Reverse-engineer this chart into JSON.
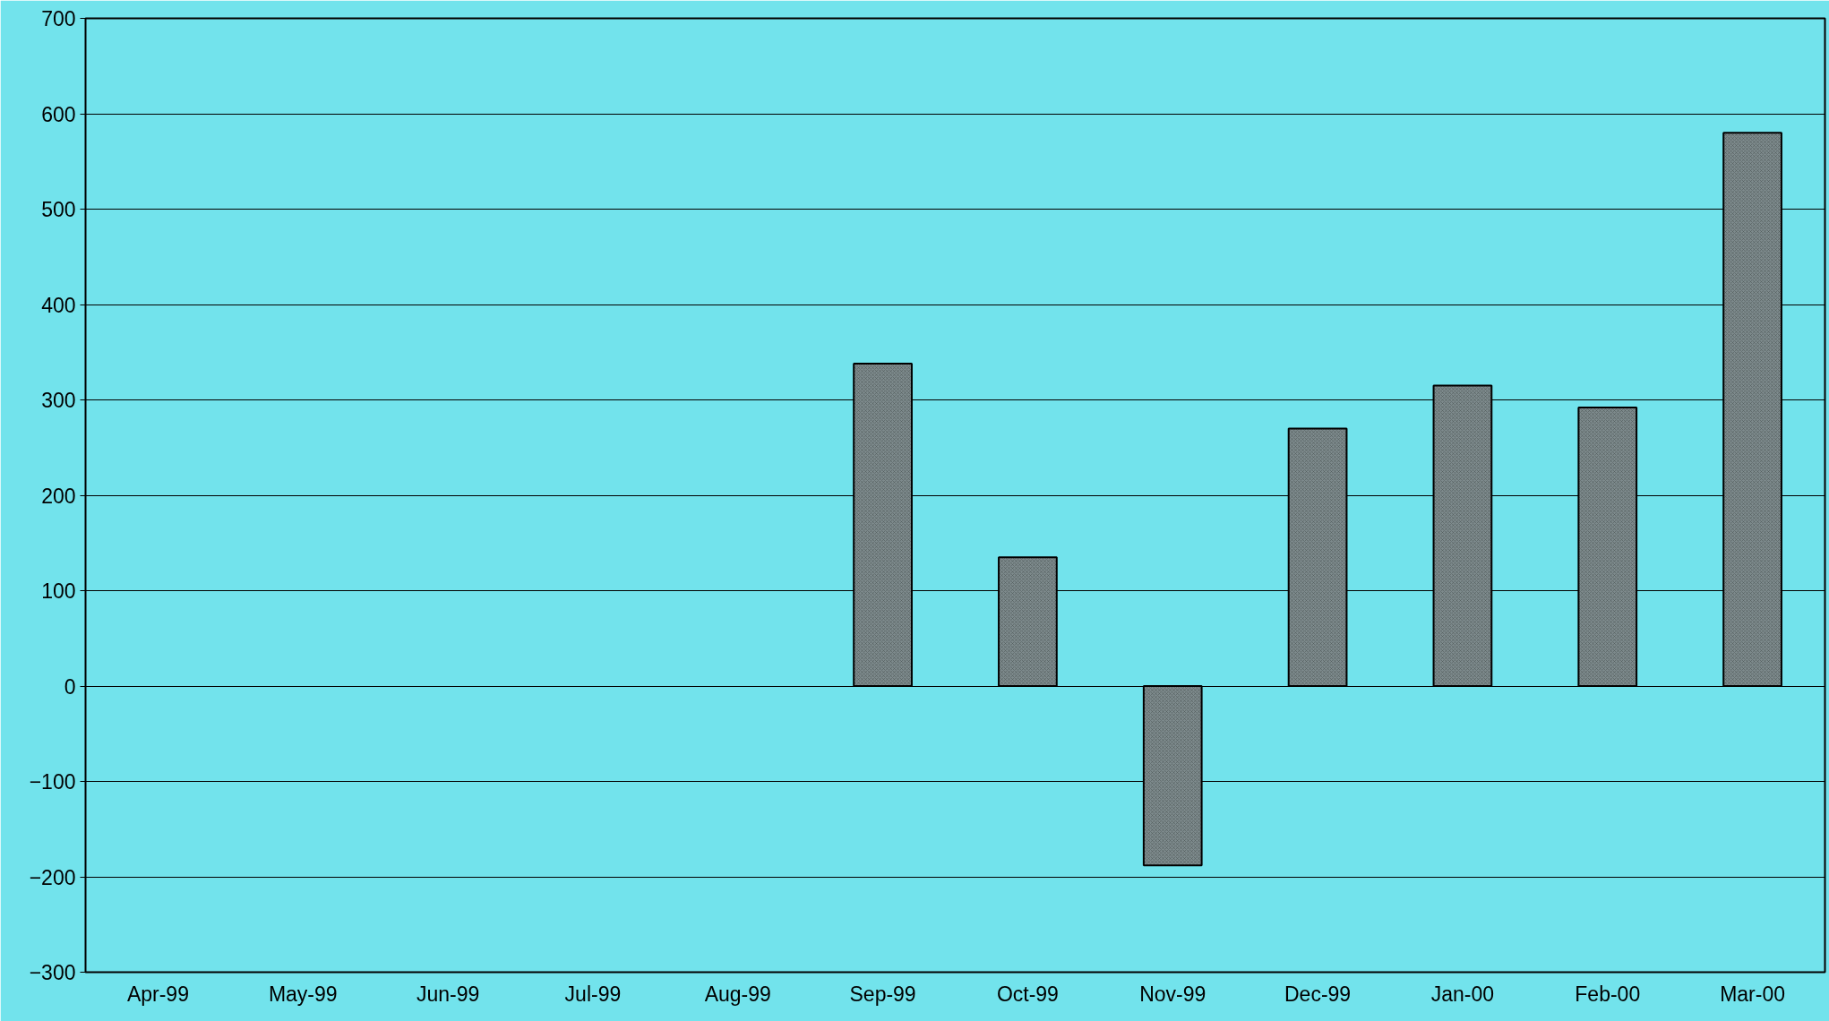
{
  "chart_data": {
    "type": "bar",
    "categories": [
      "Apr-99",
      "May-99",
      "Jun-99",
      "Jul-99",
      "Aug-99",
      "Sep-99",
      "Oct-99",
      "Nov-99",
      "Dec-99",
      "Jan-00",
      "Feb-00",
      "Mar-00"
    ],
    "values": [
      null,
      null,
      null,
      null,
      null,
      338,
      135,
      -188,
      270,
      315,
      292,
      580
    ],
    "color": "#7d8a8c",
    "ylim": [
      -300,
      700
    ],
    "yticks": [
      -300,
      -200,
      -100,
      0,
      100,
      200,
      300,
      400,
      500,
      600,
      700
    ],
    "grid": "y"
  }
}
